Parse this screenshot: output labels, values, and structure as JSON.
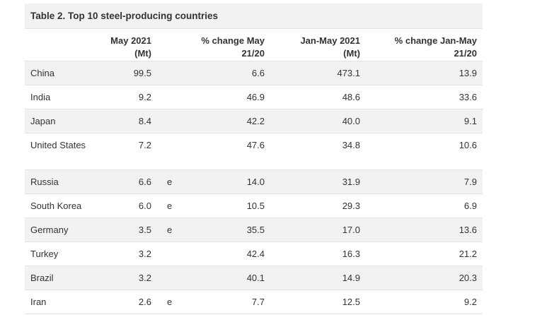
{
  "table": {
    "title": "Table 2. Top 10 steel-producing countries",
    "headers": {
      "col1": "",
      "col2_line1": "May 2021",
      "col2_line2": "(Mt)",
      "col3": "",
      "col4_line1": "% change May",
      "col4_line2": "21/20",
      "col5_line1": "Jan-May 2021",
      "col5_line2": "(Mt)",
      "col6_line1": "% change Jan-May",
      "col6_line2": "21/20"
    },
    "rows": [
      {
        "country": "China",
        "may2021": "99.5",
        "est": "",
        "change_may": "6.6",
        "jan_may": "473.1",
        "change_jan_may": "13.9"
      },
      {
        "country": "India",
        "may2021": "9.2",
        "est": "",
        "change_may": "46.9",
        "jan_may": "48.6",
        "change_jan_may": "33.6"
      },
      {
        "country": "Japan",
        "may2021": "8.4",
        "est": "",
        "change_may": "42.2",
        "jan_may": "40.0",
        "change_jan_may": "9.1"
      },
      {
        "country": "United States",
        "may2021": "7.2",
        "est": "",
        "change_may": "47.6",
        "jan_may": "34.8",
        "change_jan_may": "10.6"
      },
      {
        "country": "Russia",
        "may2021": "6.6",
        "est": "e",
        "change_may": "14.0",
        "jan_may": "31.9",
        "change_jan_may": "7.9"
      },
      {
        "country": "South Korea",
        "may2021": "6.0",
        "est": "e",
        "change_may": "10.5",
        "jan_may": "29.3",
        "change_jan_may": "6.9"
      },
      {
        "country": "Germany",
        "may2021": "3.5",
        "est": "e",
        "change_may": "35.5",
        "jan_may": "17.0",
        "change_jan_may": "13.6"
      },
      {
        "country": "Turkey",
        "may2021": "3.2",
        "est": "",
        "change_may": "42.4",
        "jan_may": "16.3",
        "change_jan_may": "21.2"
      },
      {
        "country": "Brazil",
        "may2021": "3.2",
        "est": "",
        "change_may": "40.1",
        "jan_may": "14.9",
        "change_jan_may": "20.3"
      },
      {
        "country": "Iran",
        "may2021": "2.6",
        "est": "e",
        "change_may": "7.7",
        "jan_may": "12.5",
        "change_jan_may": "9.2"
      }
    ]
  }
}
